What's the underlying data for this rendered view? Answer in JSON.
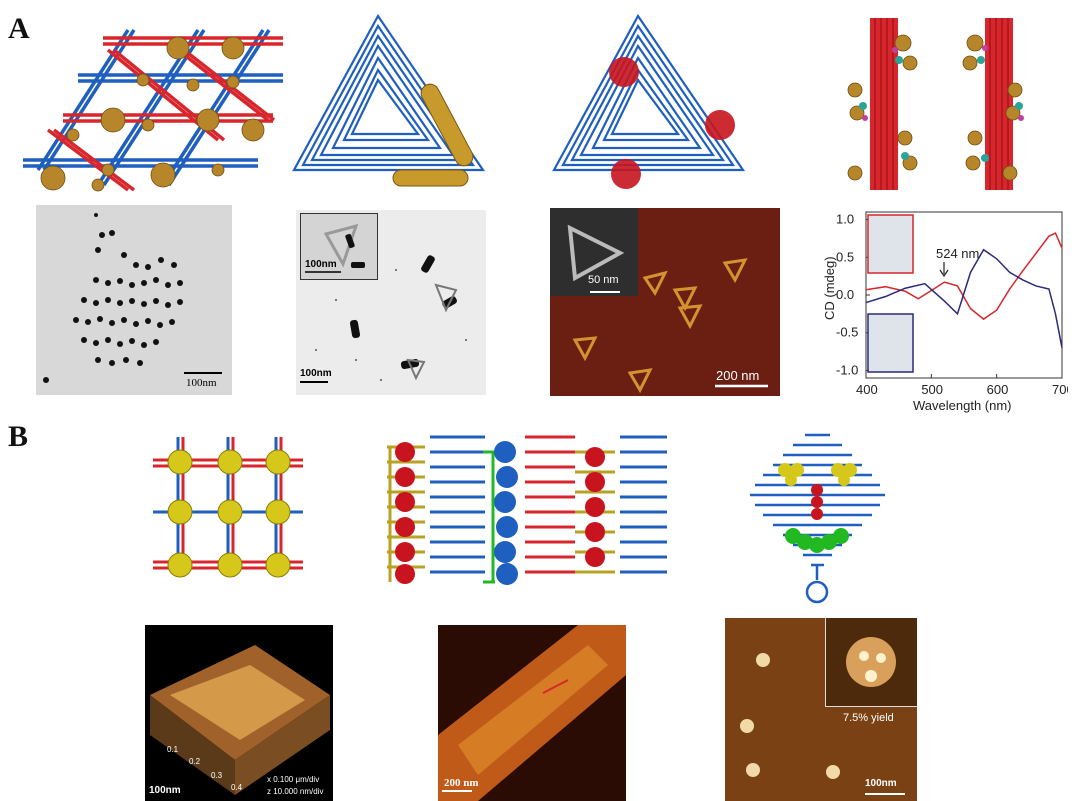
{
  "figure": {
    "panel_a_label": "A",
    "panel_b_label": "B"
  },
  "panel_a": {
    "tem1_scale": "100nm",
    "tem2_inset_scale": "100nm",
    "tem2_scale": "100nm",
    "afm_inset_scale": "50 nm",
    "afm_scale": "200 nm",
    "cd_annotation": "524 nm",
    "colors": {
      "blue_dna": "#1f5fbf",
      "red_dna": "#d8262c",
      "gold": "#b8862a"
    }
  },
  "panel_b": {
    "afm1_scale": "100nm",
    "afm1_axis_ticks": [
      "0.1",
      "0.2",
      "0.3",
      "0.4"
    ],
    "afm1_axis_x": "x  0.100 μm/div",
    "afm1_axis_z": "z  10.000 nm/div",
    "afm2_scale": "200 nm",
    "afm3_yield": "7.5% yield",
    "afm3_scale": "100nm",
    "colors": {
      "yellow_protein": "#d6c81a",
      "green_protein": "#22b822",
      "red_protein": "#c8141e"
    }
  },
  "chart_data": {
    "type": "line",
    "xlabel": "Wavelength (nm)",
    "ylabel": "CD (mdeg)",
    "xlim": [
      400,
      700
    ],
    "ylim": [
      -1.1,
      1.1
    ],
    "xticks": [
      400,
      500,
      600,
      700
    ],
    "yticks": [
      1.0,
      0.5,
      0.0,
      -0.5,
      -1.0
    ],
    "series": [
      {
        "color": "#d8262c",
        "x": [
          400,
          430,
          460,
          480,
          500,
          520,
          540,
          560,
          580,
          600,
          620,
          640,
          660,
          680,
          690,
          700
        ],
        "y": [
          0.07,
          0.11,
          0.05,
          -0.05,
          0.06,
          0.17,
          0.12,
          -0.18,
          -0.32,
          -0.2,
          0.08,
          0.32,
          0.55,
          0.78,
          0.82,
          0.62
        ]
      },
      {
        "color": "#2a2a7a",
        "x": [
          400,
          430,
          460,
          490,
          520,
          540,
          560,
          580,
          600,
          620,
          640,
          660,
          680,
          690,
          700
        ],
        "y": [
          -0.1,
          -0.02,
          0.09,
          0.15,
          -0.08,
          -0.25,
          0.3,
          0.6,
          0.48,
          0.3,
          0.2,
          0.12,
          0.08,
          -0.25,
          -0.7
        ]
      }
    ]
  }
}
